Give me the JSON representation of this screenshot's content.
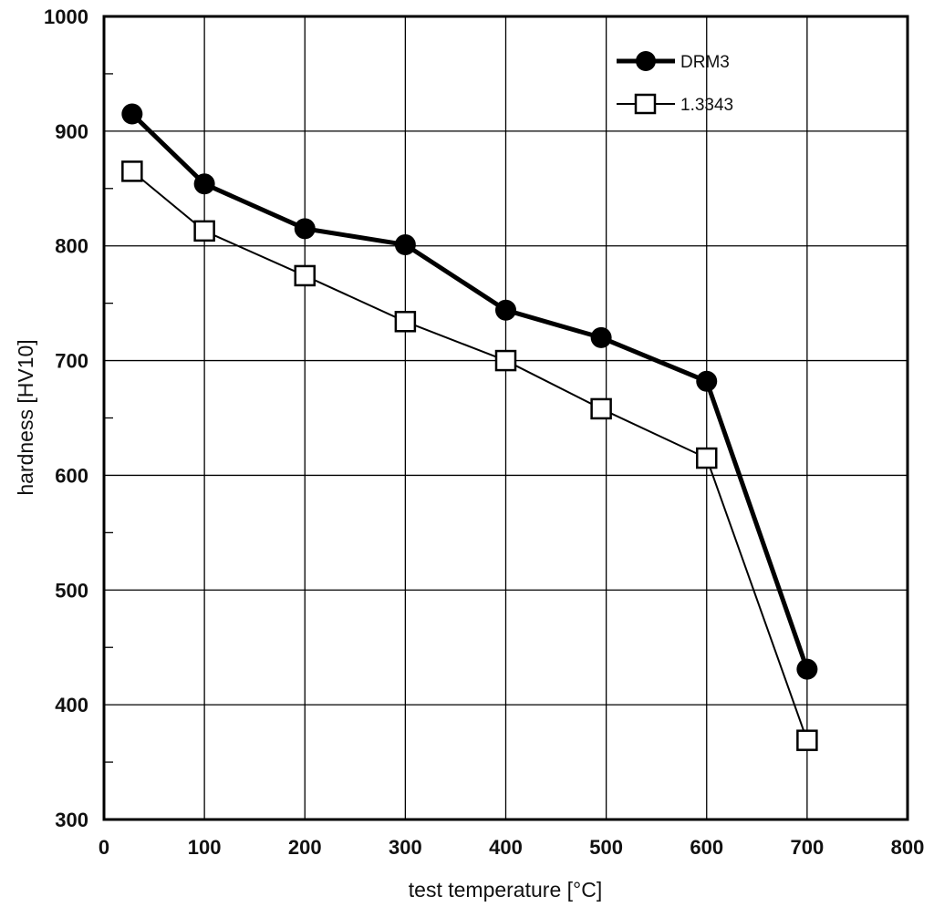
{
  "chart_data": {
    "type": "line",
    "title": "",
    "xlabel": "test temperature [°C]",
    "ylabel": "hardness [HV10]",
    "xlim": [
      0,
      800
    ],
    "ylim": [
      300,
      1000
    ],
    "xticks": [
      0,
      100,
      200,
      300,
      400,
      500,
      600,
      700,
      800
    ],
    "yticks": [
      300,
      400,
      500,
      600,
      700,
      800,
      900,
      1000
    ],
    "grid": true,
    "legend_position": "top-right",
    "series": [
      {
        "name": "DRM3",
        "marker": "filled-circle",
        "color": "#000000",
        "x": [
          28,
          100,
          200,
          300,
          400,
          495,
          600,
          700
        ],
        "y": [
          915,
          854,
          815,
          801,
          744,
          720,
          682,
          431
        ]
      },
      {
        "name": "1.3343",
        "marker": "open-square",
        "color": "#000000",
        "x": [
          28,
          100,
          200,
          300,
          400,
          495,
          600,
          700
        ],
        "y": [
          865,
          813,
          774,
          734,
          700,
          658,
          615,
          369
        ]
      }
    ]
  }
}
